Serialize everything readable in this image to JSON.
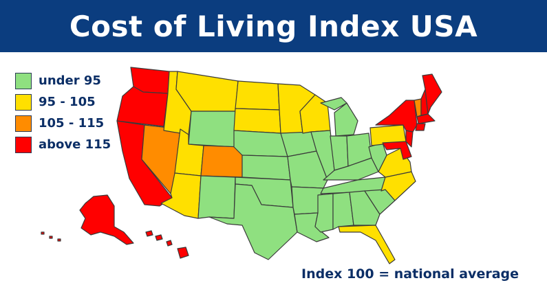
{
  "title": "Cost of Living Index USA",
  "colors": {
    "banner": "#0b3d7f",
    "under_95": "#8fe080",
    "range_95_105": "#ffe000",
    "range_105_115": "#ff8c00",
    "above_115": "#ff0000",
    "text": "#0b2e66"
  },
  "legend": [
    {
      "label": "under 95",
      "color": "#8fe080"
    },
    {
      "label": "95 - 105",
      "color": "#ffe000"
    },
    {
      "label": "105 - 115",
      "color": "#ff8c00"
    },
    {
      "label": "above 115",
      "color": "#ff0000"
    }
  ],
  "footnote": "Index 100 = national average"
}
